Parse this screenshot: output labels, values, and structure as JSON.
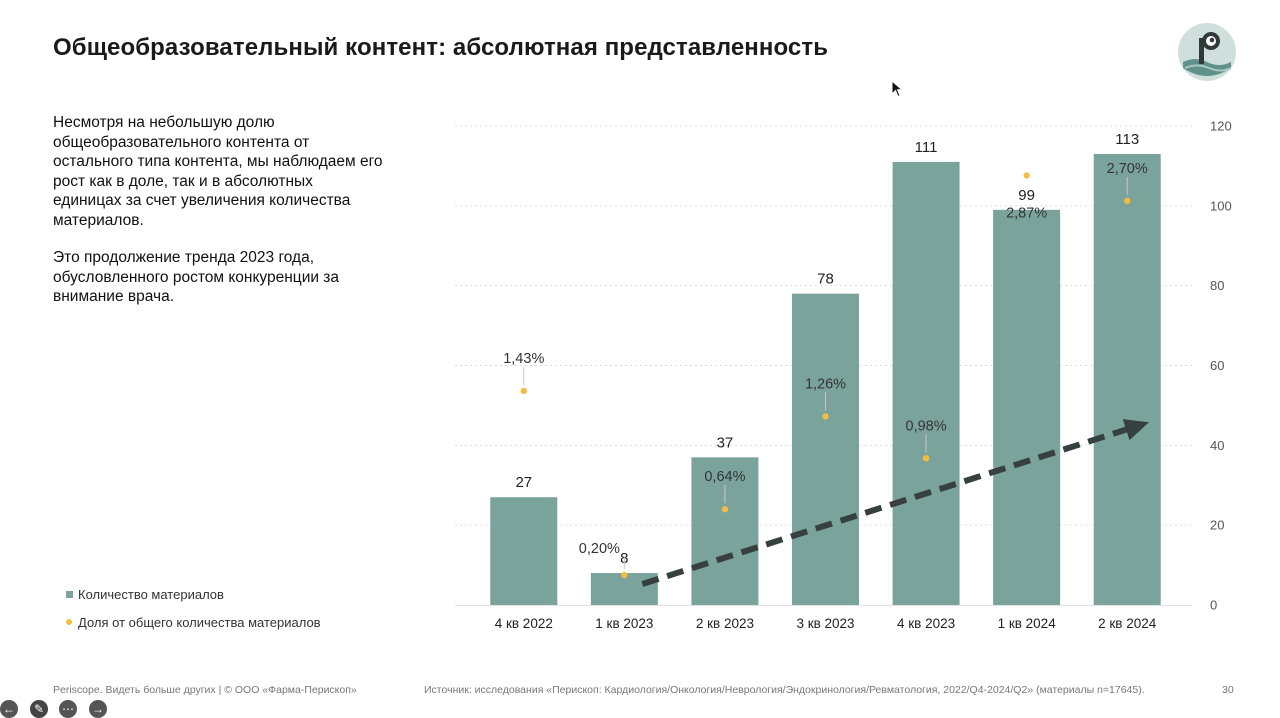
{
  "title": "Общеобразовательный контент: абсолютная представленность",
  "body_paragraphs": [
    "Несмотря на небольшую долю общеобразовательного контента от остального типа контента, мы наблюдаем его рост как в доле, так и в абсолютных единицах за счет увеличения количества материалов.",
    "Это продолжение тренда 2023 года, обусловленного ростом конкуренции за внимание врача."
  ],
  "legend": {
    "bars": "Количество материалов",
    "dots": "Доля от общего количества материалов"
  },
  "footer": {
    "left": "Periscope. Видеть больше других | © ООО «Фарма-Перископ»",
    "source": "Источник: исследования «Перископ: Кардиология/Онкология/Неврология/Эндокринология/Ревматология, 2022/Q4-2024/Q2» (материалы n=17645).",
    "page": "30"
  },
  "colors": {
    "bar": "#7aa39c",
    "dot": "#f2bd42",
    "arrow": "#36403e"
  },
  "chart_data": {
    "type": "bar",
    "categories": [
      "4 кв 2022",
      "1 кв 2023",
      "2 кв 2023",
      "3 кв 2023",
      "4 кв 2023",
      "1 кв 2024",
      "2 кв 2024"
    ],
    "series": [
      {
        "values": [
          27,
          8,
          37,
          78,
          111,
          99,
          113
        ]
      },
      {
        "values": [
          1.43,
          0.2,
          0.64,
          1.26,
          0.98,
          2.87,
          2.7
        ]
      }
    ],
    "bar_labels": [
      "27",
      "8",
      "37",
      "78",
      "111",
      "99",
      "113"
    ],
    "share_labels": [
      "1,43%",
      "0,20%",
      "0,64%",
      "1,26%",
      "0,98%",
      "2,87%",
      "2,70%"
    ],
    "y_ticks": [
      "0",
      "20",
      "40",
      "60",
      "80",
      "100",
      "120"
    ],
    "ylim": [
      0,
      120
    ],
    "share_ylim": [
      0,
      3.2
    ],
    "y_axis_side": "right",
    "grid": true,
    "trend_arrow": true,
    "legend_position": "bottom-left"
  }
}
